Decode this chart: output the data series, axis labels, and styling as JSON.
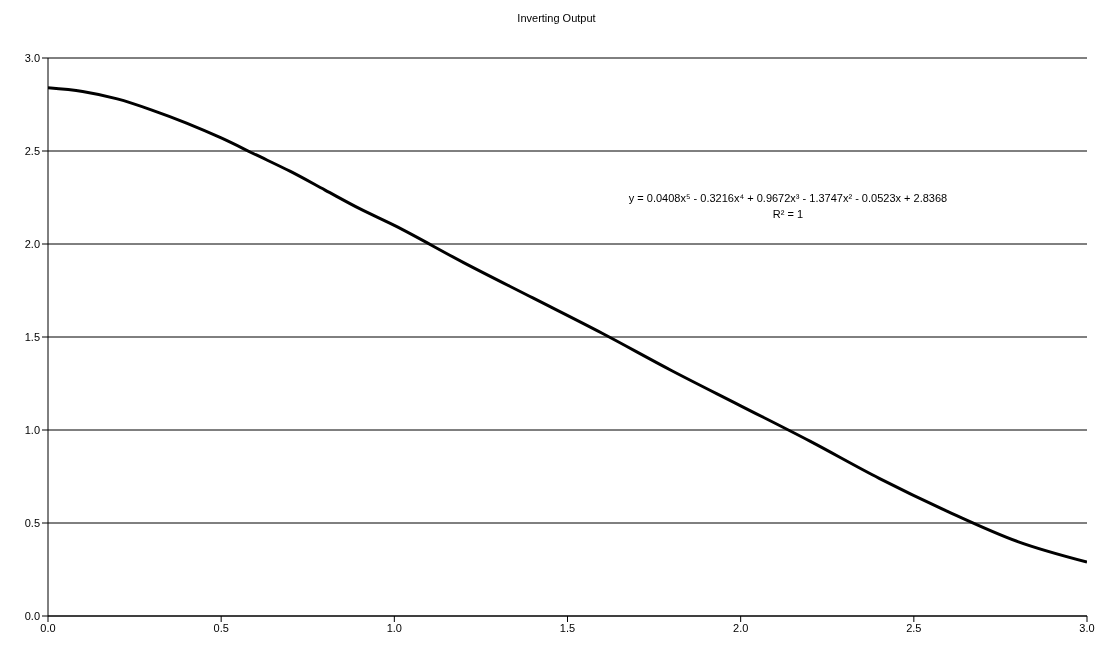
{
  "chart_data": {
    "type": "line",
    "title": "Inverting Output",
    "x": [
      0,
      0.1,
      0.2,
      0.3,
      0.4,
      0.5,
      0.6,
      0.7,
      0.8,
      0.9,
      1.0,
      1.2,
      1.4,
      1.6,
      1.8,
      2.0,
      2.2,
      2.4,
      2.6,
      2.8,
      3.0
    ],
    "series": [
      {
        "color": "#000000",
        "values": [
          2.84,
          2.82,
          2.78,
          2.72,
          2.65,
          2.57,
          2.48,
          2.39,
          2.29,
          2.19,
          2.1,
          1.9,
          1.71,
          1.52,
          1.32,
          1.13,
          0.94,
          0.74,
          0.56,
          0.4,
          0.29
        ]
      }
    ],
    "xlim": [
      0,
      3
    ],
    "xticks": [
      {
        "value": 0,
        "label": "0.0"
      },
      0.5,
      {
        "value": 1,
        "label": "1.0"
      },
      1.5,
      {
        "value": 2,
        "label": "2.0"
      },
      2.5,
      {
        "value": 3,
        "label": "3.0"
      }
    ],
    "ylim": [
      0,
      3
    ],
    "yticks": [
      {
        "value": 0,
        "label": "0.0"
      },
      0.5,
      {
        "value": 1,
        "label": "1.0"
      },
      1.5,
      {
        "value": 2,
        "label": "2.0"
      },
      2.5,
      {
        "value": 3,
        "label": "3.0"
      }
    ],
    "grid": "y",
    "marker": "none",
    "line_style": "solid",
    "annotations": [
      "y = 0.0408x⁵ - 0.3216x⁴ + 0.9672x³ - 1.3747x² - 0.0523x + 2.8368",
      "R² = 1"
    ]
  }
}
